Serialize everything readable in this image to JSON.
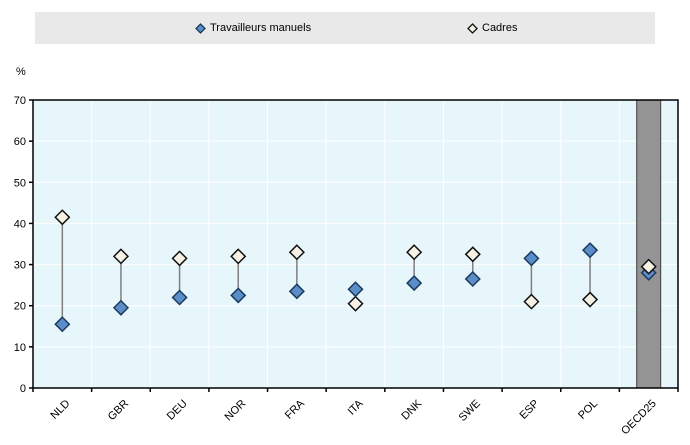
{
  "legend": {
    "background": "#E9E9E9",
    "items": [
      {
        "label": "Travailleurs manuels",
        "marker": "filled-diamond",
        "fill": "#5B8DC8",
        "border": "#1C3A5E"
      },
      {
        "label": "Cadres",
        "marker": "open-diamond",
        "fill": "#F5F1E4",
        "border": "#101010"
      }
    ]
  },
  "chart_data": {
    "type": "scatter",
    "subtype": "dumbbell",
    "title": "",
    "ylabel": "%",
    "xlabel": "",
    "ylim": [
      0,
      70
    ],
    "ytick_step": 10,
    "grid": true,
    "legend_position": "top",
    "categories": [
      "NLD",
      "GBR",
      "DEU",
      "NOR",
      "FRA",
      "ITA",
      "DNK",
      "SWE",
      "ESP",
      "POL",
      "OECD25"
    ],
    "series": [
      {
        "name": "Travailleurs manuels",
        "marker": "filled-diamond",
        "fill": "#5B8DC8",
        "border": "#1C3A5E",
        "values": [
          15.5,
          19.5,
          22,
          22.5,
          23.5,
          24,
          25.5,
          26.5,
          31.5,
          33.5,
          28
        ]
      },
      {
        "name": "Cadres",
        "marker": "open-diamond",
        "fill": "#F5F1E4",
        "border": "#101010",
        "values": [
          41.5,
          32,
          31.5,
          32,
          33,
          20.5,
          33,
          32.5,
          21,
          21.5,
          29.5
        ]
      }
    ],
    "highlight_category": "OECD25",
    "colors": {
      "plot_background": "#E7F6FA",
      "grid": "#FFFFFF",
      "axis": "#000000",
      "connector": "#7F7F7F",
      "band_fill": "#949494",
      "band_border": "#3F3F3F",
      "tick_text": "#000000"
    }
  }
}
